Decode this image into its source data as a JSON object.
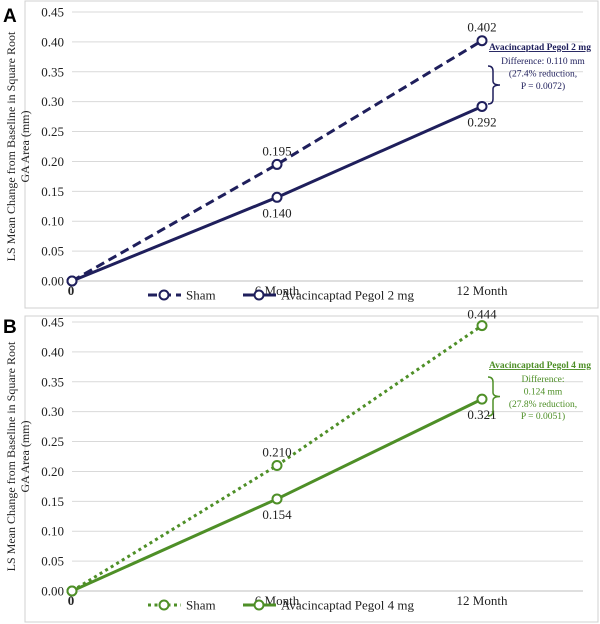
{
  "chart_data": [
    {
      "panel_label": "A",
      "type": "line",
      "ylabel_lines": [
        "LS Mean Change from Baseline  in Square Root",
        "GA Area (mm)"
      ],
      "categories": [
        "0",
        "6 Month",
        "12 Month"
      ],
      "ylim": [
        0,
        0.45
      ],
      "yticks": [
        "0.00",
        "0.05",
        "0.10",
        "0.15",
        "0.20",
        "0.25",
        "0.30",
        "0.35",
        "0.40",
        "0.45"
      ],
      "grid": true,
      "color": "#1f1f5c",
      "legend_position": "bottom",
      "series": [
        {
          "name": "Sham",
          "style": "dashed",
          "values": [
            0,
            0.195,
            0.402
          ],
          "labels": [
            "",
            "0.195",
            "0.402"
          ]
        },
        {
          "name": "Avacincaptad Pegol 2 mg",
          "style": "solid",
          "values": [
            0,
            0.14,
            0.292
          ],
          "labels": [
            "",
            "0.140",
            "0.292"
          ]
        }
      ],
      "annotation": {
        "title": "Avacincaptad Pegol 2 mg",
        "lines": [
          "Difference: 0.110 mm",
          "(27.4% reduction,",
          "P = 0.0072)"
        ]
      }
    },
    {
      "panel_label": "B",
      "type": "line",
      "ylabel_lines": [
        "LS Mean Change from Baseline  in Square Root",
        "GA Area (mm)"
      ],
      "categories": [
        "0",
        "6 Month",
        "12 Month"
      ],
      "ylim": [
        0,
        0.45
      ],
      "yticks": [
        "0.00",
        "0.05",
        "0.10",
        "0.15",
        "0.20",
        "0.25",
        "0.30",
        "0.35",
        "0.40",
        "0.45"
      ],
      "grid": true,
      "color": "#4e8f27",
      "legend_position": "bottom",
      "series": [
        {
          "name": "Sham",
          "style": "dotted",
          "values": [
            0,
            0.21,
            0.444
          ],
          "labels": [
            "",
            "0.210",
            "0.444"
          ]
        },
        {
          "name": "Avacincaptad Pegol 4 mg",
          "style": "solid",
          "values": [
            0,
            0.154,
            0.321
          ],
          "labels": [
            "",
            "0.154",
            "0.321"
          ]
        }
      ],
      "annotation": {
        "title": "Avacincaptad Pegol 4 mg",
        "lines": [
          "Difference:",
          "0.124 mm",
          "(27.8% reduction,",
          "P = 0.0051)"
        ]
      }
    }
  ]
}
